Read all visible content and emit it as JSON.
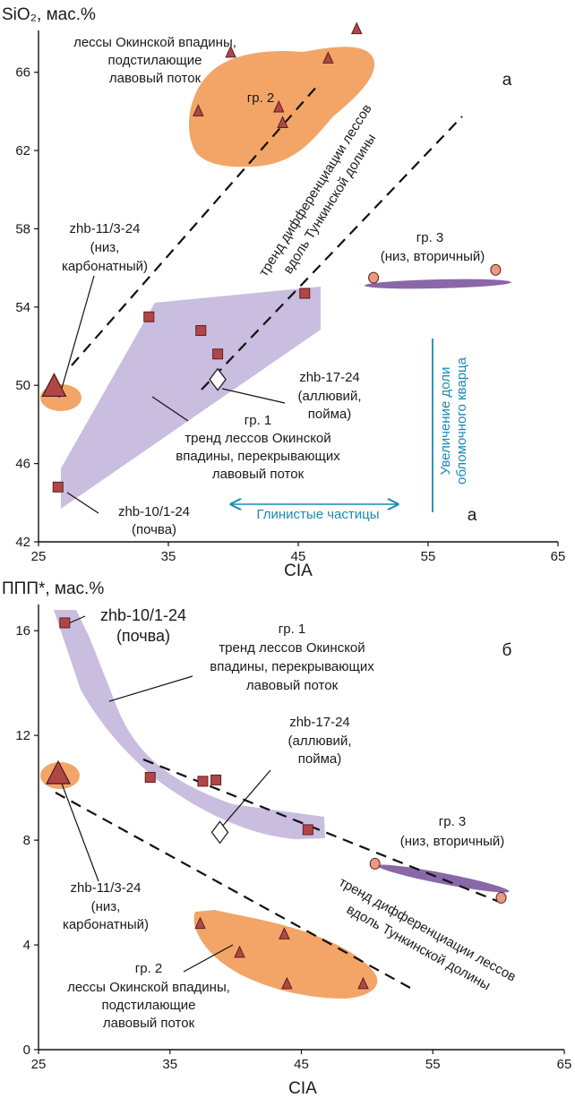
{
  "colors": {
    "gr1": "#c9bde0",
    "gr2": "#f2a567",
    "gr3": "#8a68a8",
    "square": "#b24646",
    "triangle": "#b24646",
    "ellipse_point": "#e8997f",
    "quartz_arrow": "#1a8ab0"
  },
  "chart_data": [
    {
      "type": "scatter",
      "panel_label": "а",
      "corner_label": "а",
      "ylabel": "SiO₂, мас.%",
      "xlabel": "CIA",
      "xlim": [
        25,
        65
      ],
      "ylim": [
        42,
        68
      ],
      "x_ticks": [
        "25",
        "35",
        "45",
        "55",
        "65"
      ],
      "y_ticks": [
        "42",
        "46",
        "50",
        "54",
        "58",
        "62",
        "66"
      ],
      "grid": false,
      "series": [
        {
          "name": "гр. 1",
          "marker": "square",
          "points": [
            [
              26.5,
              44.8
            ],
            [
              33.5,
              53.5
            ],
            [
              37.5,
              52.8
            ],
            [
              38.8,
              51.6
            ],
            [
              45.5,
              54.7
            ]
          ]
        },
        {
          "name": "гр. 2",
          "marker": "triangle",
          "points": [
            [
              37.3,
              64.0
            ],
            [
              39.8,
              67.0
            ],
            [
              43.5,
              64.2
            ],
            [
              43.8,
              63.4
            ],
            [
              47.3,
              66.7
            ],
            [
              49.5,
              68.2
            ]
          ]
        },
        {
          "name": "гр. 3",
          "marker": "circle",
          "points": [
            [
              50.8,
              55.5
            ],
            [
              60.2,
              55.9
            ]
          ]
        },
        {
          "name": "zhb-11/3-24",
          "marker": "big-triangle",
          "points": [
            [
              26.2,
              49.9
            ]
          ]
        },
        {
          "name": "zhb-17-24",
          "marker": "diamond",
          "points": [
            [
              38.8,
              50.3
            ]
          ]
        }
      ],
      "annotations": {
        "gr2_title": "лессы Окинской впадины,",
        "gr2_sub1": "подстилающие",
        "gr2_sub2": "лавовый поток",
        "gr2_label": "гр. 2",
        "trend_line1": "тренд дифференциации лессов",
        "trend_line2": "вдоль Тункинской долины",
        "zhb11_id": "zhb-11/3-24",
        "zhb11_l1": "(низ,",
        "zhb11_l2": "карбонатный)",
        "gr3_label": "гр. 3",
        "gr3_sub": "(низ, вторичный)",
        "zhb17_id": "zhb-17-24",
        "zhb17_l1": "(аллювий,",
        "zhb17_l2": "пойма)",
        "gr1_label": "гр. 1",
        "gr1_l1": "тренд лессов Окинской",
        "gr1_l2": "впадины, перекрывающих",
        "gr1_l3": "лавовый поток",
        "zhb10_id": "zhb-10/1-24",
        "zhb10_sub": "(почва)",
        "clay_label": "Глинистые частицы",
        "quartz_l1": "Увеличение доли",
        "quartz_l2": "обломочного кварца"
      }
    },
    {
      "type": "scatter",
      "panel_label": "б",
      "ylabel": "ППП*, мас.%",
      "xlabel": "CIA",
      "xlim": [
        25,
        65
      ],
      "ylim": [
        0,
        17
      ],
      "x_ticks": [
        "25",
        "35",
        "45",
        "55",
        "65"
      ],
      "y_ticks": [
        "0",
        "4",
        "8",
        "12",
        "16"
      ],
      "grid": false,
      "series": [
        {
          "name": "гр. 1",
          "marker": "square",
          "points": [
            [
              27.0,
              16.3
            ],
            [
              33.5,
              10.4
            ],
            [
              37.5,
              10.25
            ],
            [
              38.5,
              10.3
            ],
            [
              45.5,
              8.4
            ]
          ]
        },
        {
          "name": "гр. 2",
          "marker": "triangle",
          "points": [
            [
              37.3,
              4.8
            ],
            [
              40.3,
              3.7
            ],
            [
              43.7,
              4.4
            ],
            [
              43.9,
              2.5
            ],
            [
              49.7,
              2.5
            ]
          ]
        },
        {
          "name": "гр. 3",
          "marker": "circle",
          "points": [
            [
              50.6,
              7.1
            ],
            [
              60.2,
              5.8
            ]
          ]
        },
        {
          "name": "zhb-11/3-24",
          "marker": "big-triangle",
          "points": [
            [
              26.5,
              10.5
            ]
          ]
        },
        {
          "name": "zhb-17-24",
          "marker": "diamond",
          "points": [
            [
              38.8,
              8.3
            ]
          ]
        }
      ],
      "annotations": {
        "zhb10_id": "zhb-10/1-24",
        "zhb10_sub": "(почва)",
        "gr1_label": "гр. 1",
        "gr1_l1": "тренд лессов Окинской",
        "gr1_l2": "впадины, перекрывающих",
        "gr1_l3": "лавовый поток",
        "zhb17_id": "zhb-17-24",
        "zhb17_l1": "(аллювий,",
        "zhb17_l2": "пойма)",
        "gr3_label": "гр. 3",
        "gr3_sub": "(низ, вторичный)",
        "zhb11_id": "zhb-11/3-24",
        "zhb11_l1": "(низ,",
        "zhb11_l2": "карбонатный)",
        "trend_line1": "тренд дифференциации лессов",
        "trend_line2": "вдоль Тункинской долины",
        "gr2_label": "гр. 2",
        "gr2_l1": "лессы Окинской впадины,",
        "gr2_l2": "подстилающие",
        "gr2_l3": "лавовый поток"
      }
    }
  ]
}
